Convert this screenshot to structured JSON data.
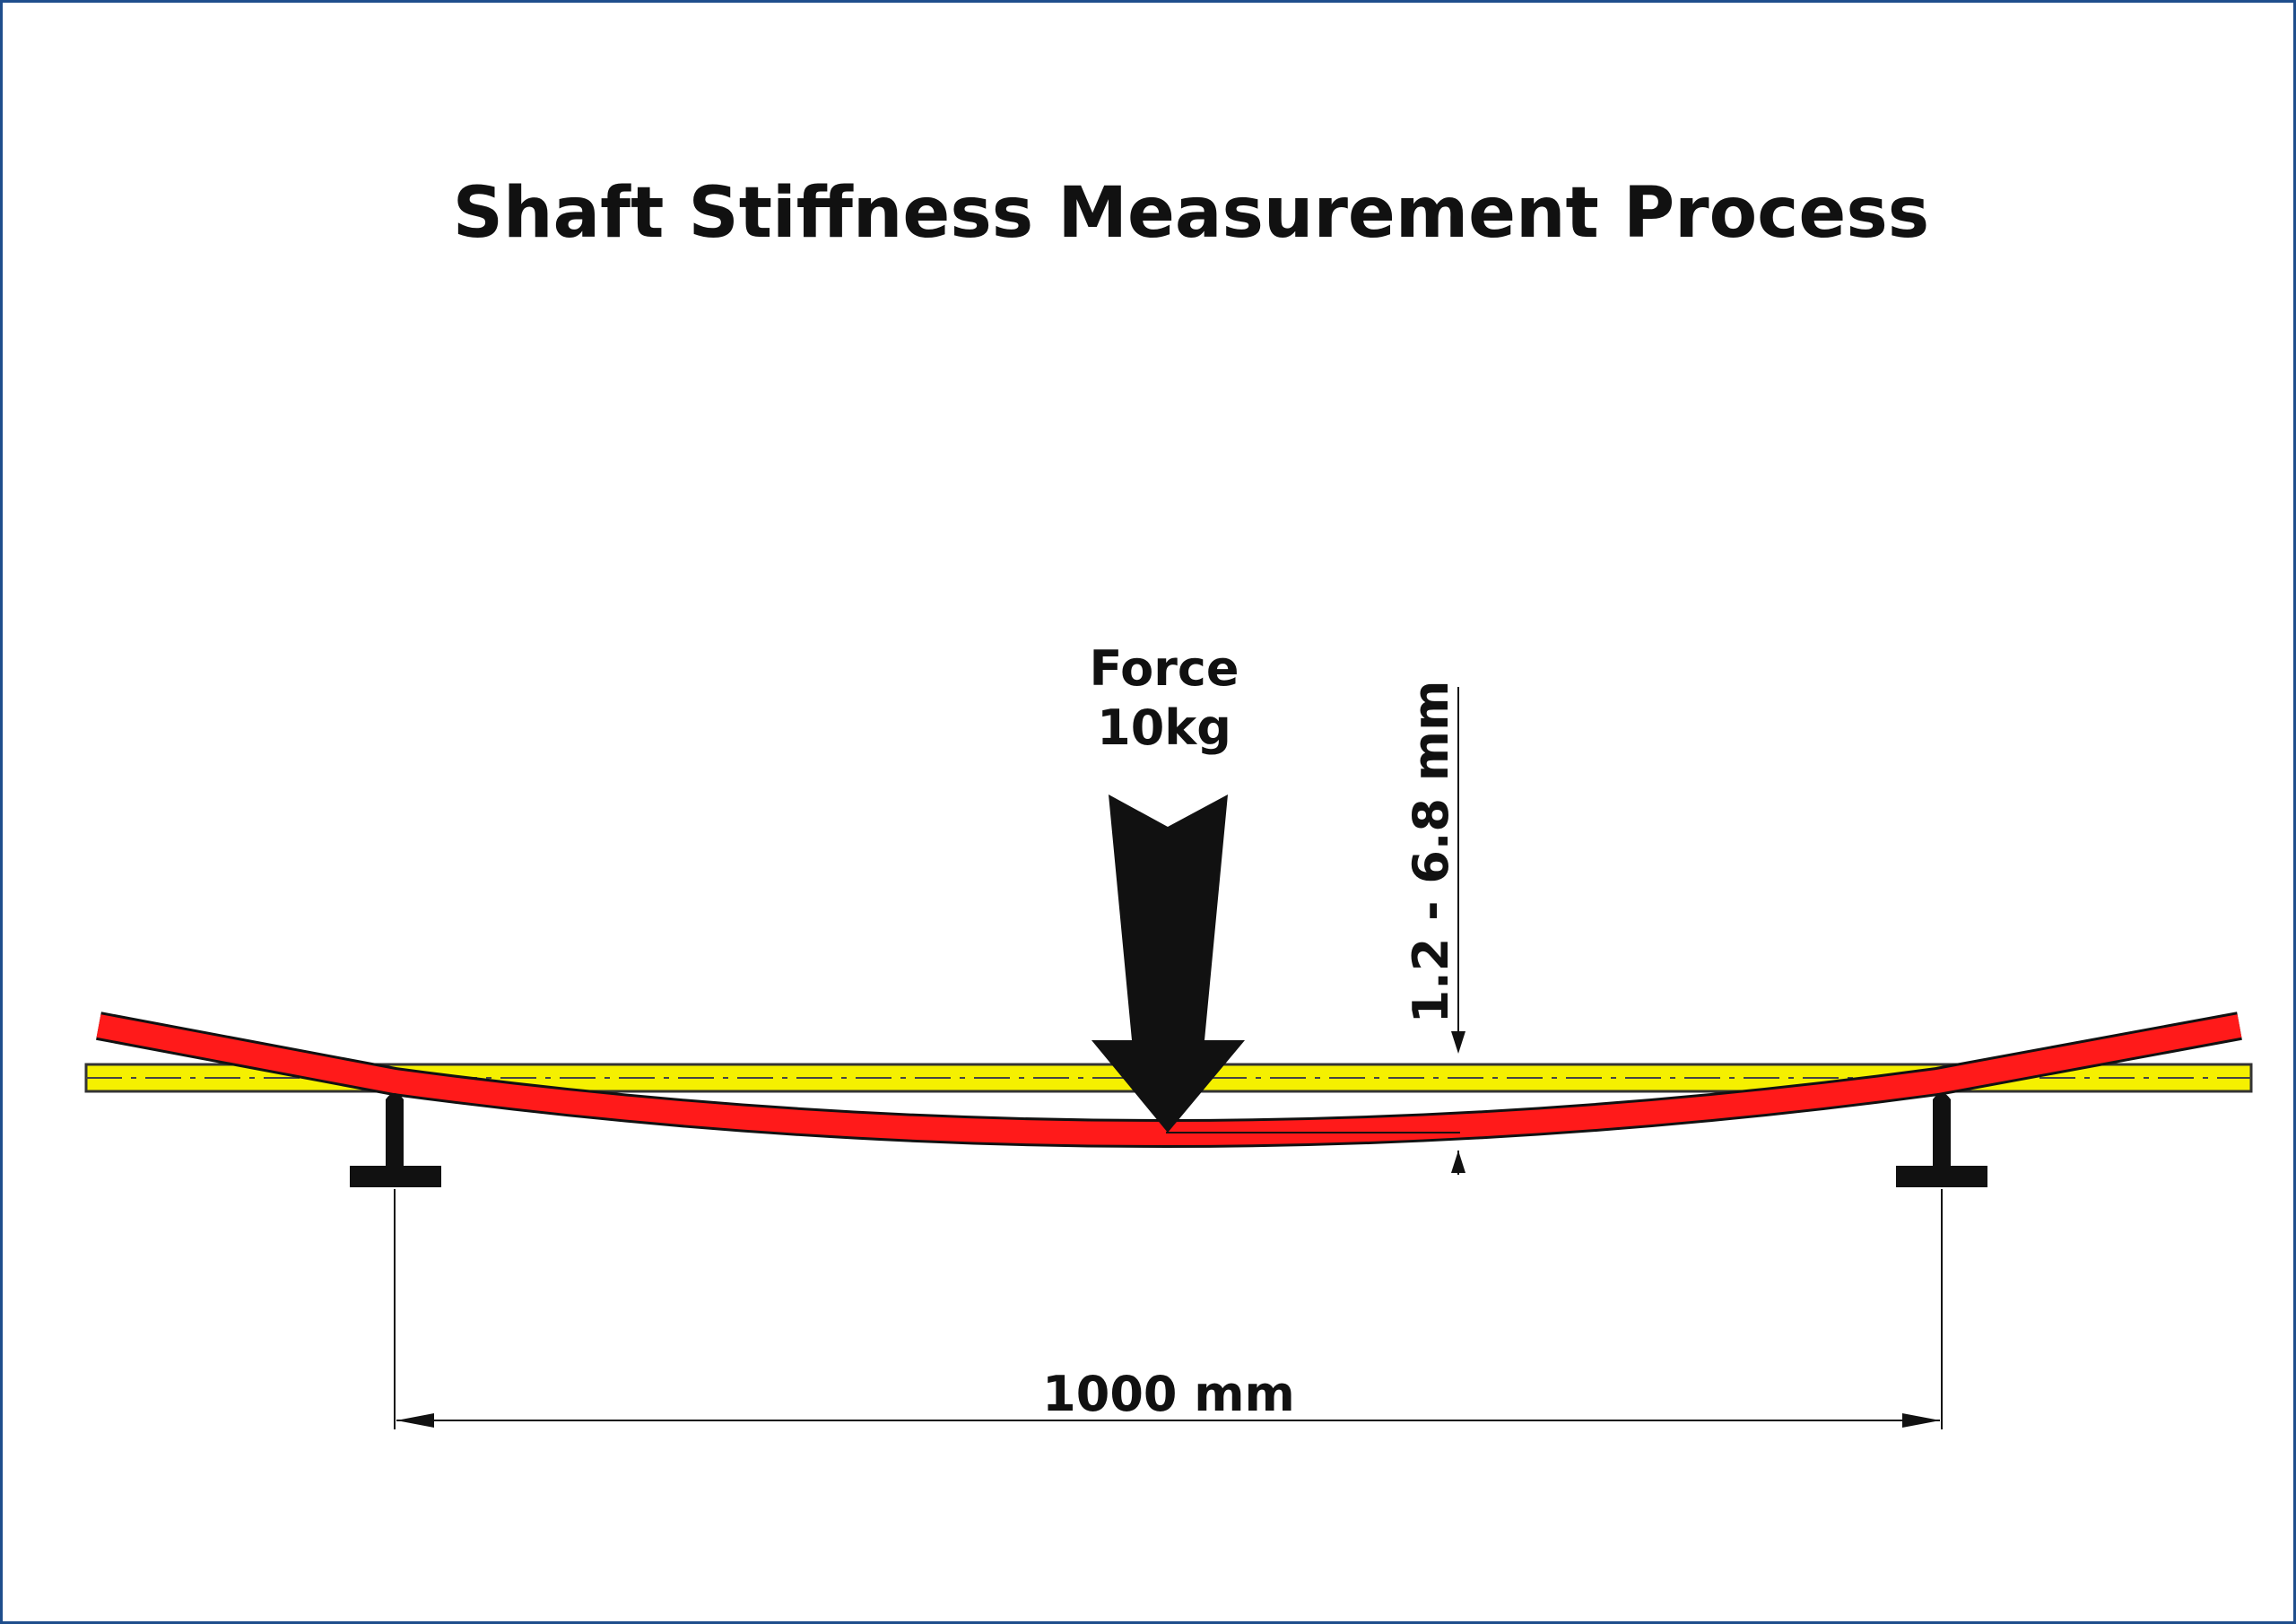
{
  "title": "Shaft Stiffness Measurement Process",
  "force": {
    "label": "Force",
    "value": "10kg"
  },
  "deflection_range": "1.2 - 6.8 mm",
  "span_length": "1000 mm",
  "colors": {
    "frame_border": "#1f4e8c",
    "deflected_shaft": "#ff1a1a",
    "neutral_shaft": "#f5f000",
    "supports": "#111111",
    "force_arrow": "#111111",
    "dimension_lines": "#111111"
  }
}
